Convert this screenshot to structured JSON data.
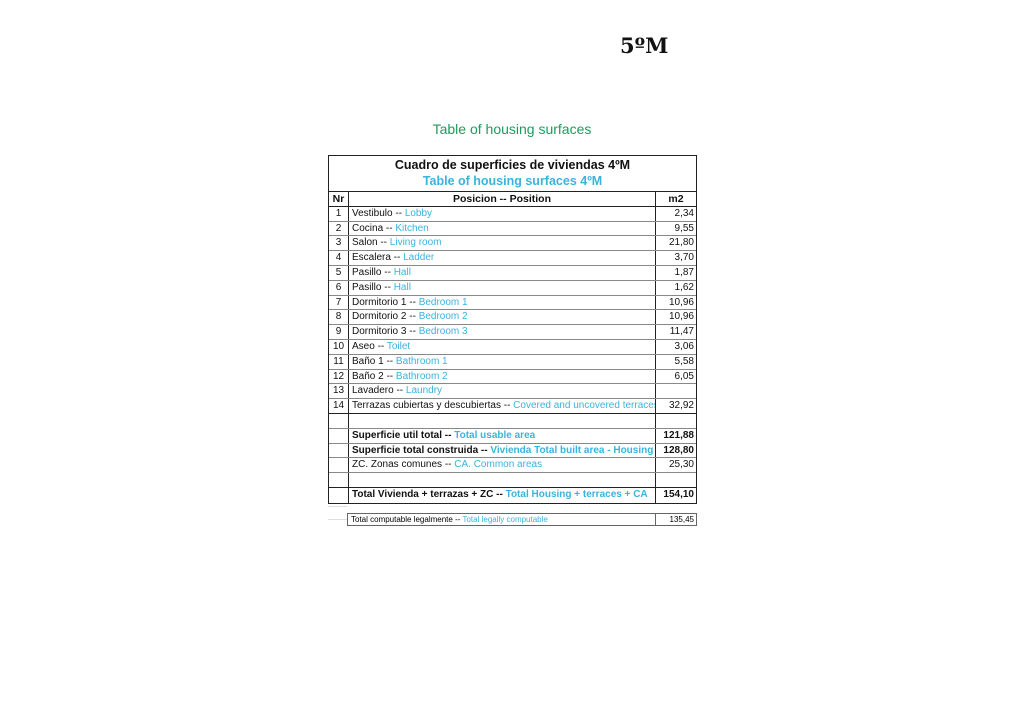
{
  "page_label": "5ºM",
  "doc_title": "Table of housing surfaces",
  "table": {
    "title_es": "Cuadro de superficies de viviendas 4ºM",
    "title_en": "Table of housing surfaces 4ºM",
    "headers": {
      "nr": "Nr",
      "position": "Posicion -- Position",
      "m2": "m2"
    },
    "rows": [
      {
        "nr": "1",
        "es": "Vestibulo -- ",
        "en": "Lobby",
        "m2": "2,34"
      },
      {
        "nr": "2",
        "es": "Cocina --  ",
        "en": "Kitchen",
        "m2": "9,55"
      },
      {
        "nr": "3",
        "es": "Salon -- ",
        "en": "Living room",
        "m2": "21,80"
      },
      {
        "nr": "4",
        "es": "Escalera -- ",
        "en": "Ladder",
        "m2": "3,70"
      },
      {
        "nr": "5",
        "es": "Pasillo -- ",
        "en": "Hall",
        "m2": "1,87"
      },
      {
        "nr": "6",
        "es": "Pasillo -- ",
        "en": "Hall",
        "m2": "1,62"
      },
      {
        "nr": "7",
        "es": "Dormitorio 1 -- ",
        "en": "Bedroom 1",
        "m2": "10,96"
      },
      {
        "nr": "8",
        "es": "Dormitorio 2 -- ",
        "en": "Bedroom 2",
        "m2": "10,96"
      },
      {
        "nr": "9",
        "es": "Dormitorio 3 -- ",
        "en": "Bedroom 3",
        "m2": "11,47"
      },
      {
        "nr": "10",
        "es": "Aseo -- ",
        "en": "Toilet",
        "m2": "3,06"
      },
      {
        "nr": "11",
        "es": "Baño 1 -- ",
        "en": "Bathroom 1",
        "m2": "5,58"
      },
      {
        "nr": "12",
        "es": "Baño 2 -- ",
        "en": "Bathroom 2",
        "m2": "6,05"
      },
      {
        "nr": "13",
        "es": "Lavadero -- ",
        "en": "Laundry",
        "m2": ""
      },
      {
        "nr": "14",
        "es": "Terrazas cubiertas y descubiertas -- ",
        "en": "Covered and uncovered terraces",
        "m2": "32,92"
      }
    ],
    "totals": [
      {
        "es": "Superficie util total -- ",
        "en": "Total usable area",
        "m2": "121,88",
        "bold": true
      },
      {
        "es": "Superficie total construida -- ",
        "en": "Vivienda Total built area - Housing",
        "m2": "128,80",
        "bold": true
      },
      {
        "es": "ZC. Zonas comunes  -- ",
        "en": "CA. Common areas",
        "m2": "25,30",
        "bold": false
      }
    ],
    "grand_total": {
      "es": "Total Vivienda + terrazas + ZC  -- ",
      "en": "Total Housing + terraces + CA",
      "m2": "154,10"
    }
  },
  "computable": {
    "es": "Total computable legalmente -- ",
    "en": "Total legally computable",
    "m2": "135,45"
  },
  "colors": {
    "english_text": "#3ab3dd",
    "doc_title": "#1e9a5c"
  }
}
